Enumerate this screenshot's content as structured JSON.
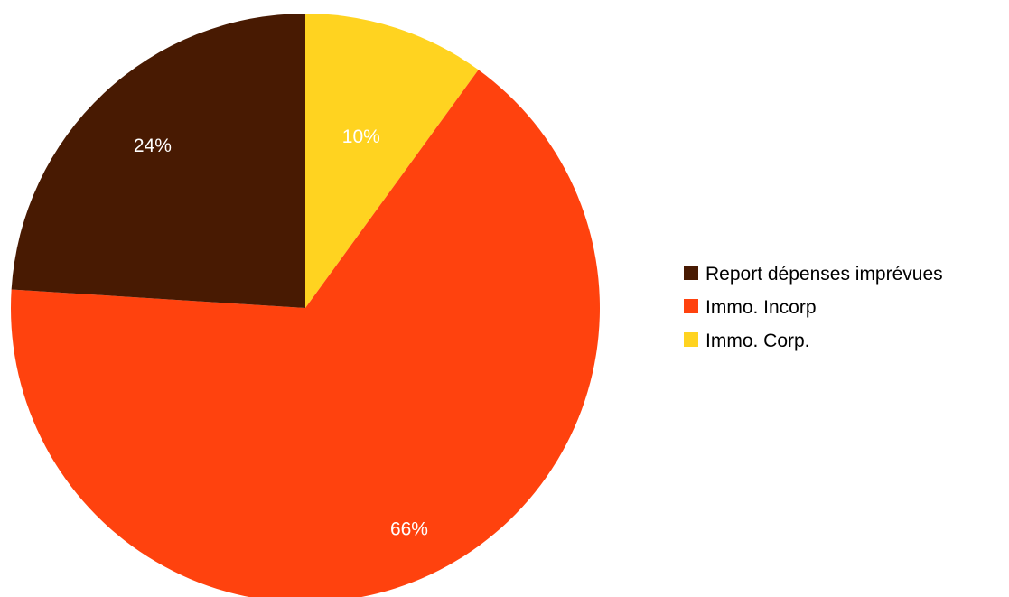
{
  "chart_data": {
    "type": "pie",
    "series": [
      {
        "name": "Report dépenses imprévues",
        "value": 24,
        "label": "24%",
        "color": "#481a02"
      },
      {
        "name": "Immo. Incorp",
        "value": 66,
        "label": "66%",
        "color": "#ff420e"
      },
      {
        "name": "Immo. Corp.",
        "value": 10,
        "label": "10%",
        "color": "#ffd320"
      }
    ],
    "legend_position": "right"
  }
}
